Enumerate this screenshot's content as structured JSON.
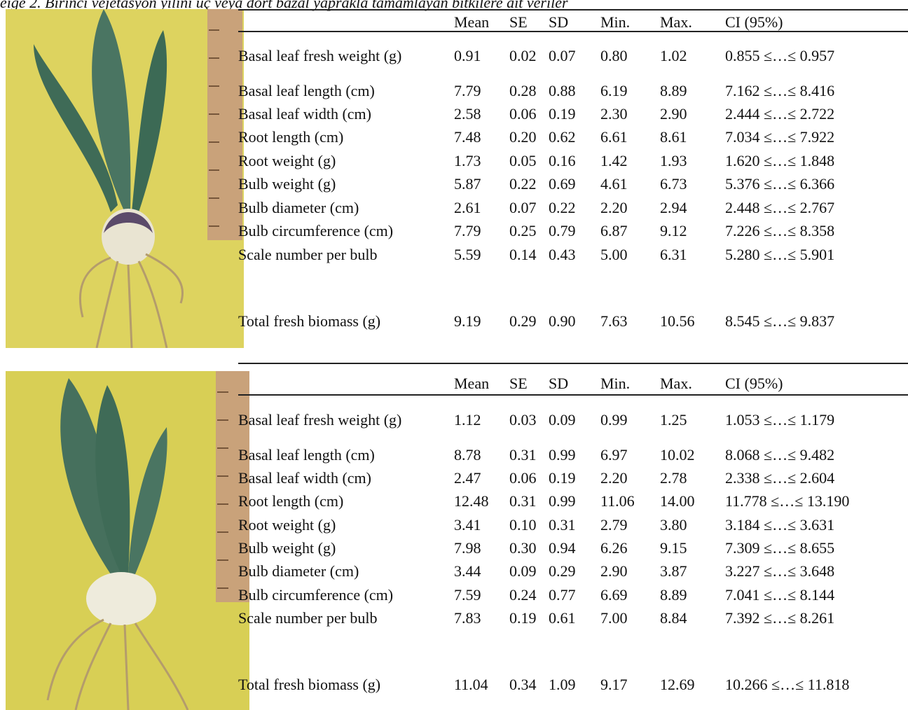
{
  "caption": "eige 2. Birinci vejetasyon yılını üç veya dört bazal yaprakla tamamlayan bitkilere ait veriler",
  "tables": [
    {
      "headers": [
        "Mean",
        "SE",
        "SD",
        "Min.",
        "Max.",
        "CI (95%)"
      ],
      "rows": [
        [
          "Basal leaf fresh weight (g)",
          "0.91",
          "0.02",
          "0.07",
          "0.80",
          "1.02",
          "0.855 ≤…≤ 0.957"
        ],
        [
          "Basal leaf length (cm)",
          "7.79",
          "0.28",
          "0.88",
          "6.19",
          "8.89",
          "7.162 ≤…≤ 8.416"
        ],
        [
          "Basal leaf width (cm)",
          "2.58",
          "0.06",
          "0.19",
          "2.30",
          "2.90",
          "2.444 ≤…≤ 2.722"
        ],
        [
          "Root length (cm)",
          "7.48",
          "0.20",
          "0.62",
          "6.61",
          "8.61",
          "7.034 ≤…≤ 7.922"
        ],
        [
          "Root weight (g)",
          "1.73",
          "0.05",
          "0.16",
          "1.42",
          "1.93",
          "1.620 ≤…≤ 1.848"
        ],
        [
          "Bulb weight (g)",
          "5.87",
          "0.22",
          "0.69",
          "4.61",
          "6.73",
          "5.376 ≤…≤ 6.366"
        ],
        [
          "Bulb diameter (cm)",
          "2.61",
          "0.07",
          "0.22",
          "2.20",
          "2.94",
          "2.448 ≤…≤ 2.767"
        ],
        [
          "Bulb circumference (cm)",
          "7.79",
          "0.25",
          "0.79",
          "6.87",
          "9.12",
          "7.226 ≤…≤ 8.358"
        ],
        [
          "Scale number per bulb",
          "5.59",
          "0.14",
          "0.43",
          "5.00",
          "6.31",
          "5.280 ≤…≤ 5.901"
        ],
        [
          "Total fresh biomass (g)",
          "9.19",
          "0.29",
          "0.90",
          "7.63",
          "10.56",
          "8.545 ≤…≤ 9.837"
        ]
      ]
    },
    {
      "headers": [
        "Mean",
        "SE",
        "SD",
        "Min.",
        "Max.",
        "CI (95%)"
      ],
      "rows": [
        [
          "Basal leaf fresh weight (g)",
          "1.12",
          "0.03",
          "0.09",
          "0.99",
          "1.25",
          "1.053 ≤…≤ 1.179"
        ],
        [
          "Basal leaf length (cm)",
          "8.78",
          "0.31",
          "0.99",
          "6.97",
          "10.02",
          "8.068 ≤…≤ 9.482"
        ],
        [
          "Basal leaf width (cm)",
          "2.47",
          "0.06",
          "0.19",
          "2.20",
          "2.78",
          "2.338 ≤…≤ 2.604"
        ],
        [
          "Root length (cm)",
          "12.48",
          "0.31",
          "0.99",
          "11.06",
          "14.00",
          "11.778 ≤…≤ 13.190"
        ],
        [
          "Root weight (g)",
          "3.41",
          "0.10",
          "0.31",
          "2.79",
          "3.80",
          "3.184 ≤…≤ 3.631"
        ],
        [
          "Bulb weight (g)",
          "7.98",
          "0.30",
          "0.94",
          "6.26",
          "9.15",
          "7.309 ≤…≤ 8.655"
        ],
        [
          "Bulb diameter (cm)",
          "3.44",
          "0.09",
          "0.29",
          "2.90",
          "3.87",
          "3.227 ≤…≤ 3.648"
        ],
        [
          "Bulb circumference (cm)",
          "7.59",
          "0.24",
          "0.77",
          "6.69",
          "8.89",
          "7.041 ≤…≤ 8.144"
        ],
        [
          "Scale number per bulb",
          "7.83",
          "0.19",
          "0.61",
          "7.00",
          "8.84",
          "7.392 ≤…≤ 8.261"
        ],
        [
          "Total fresh biomass (g)",
          "11.04",
          "0.34",
          "1.09",
          "9.17",
          "12.69",
          "10.266 ≤…≤ 11.818"
        ]
      ]
    }
  ]
}
